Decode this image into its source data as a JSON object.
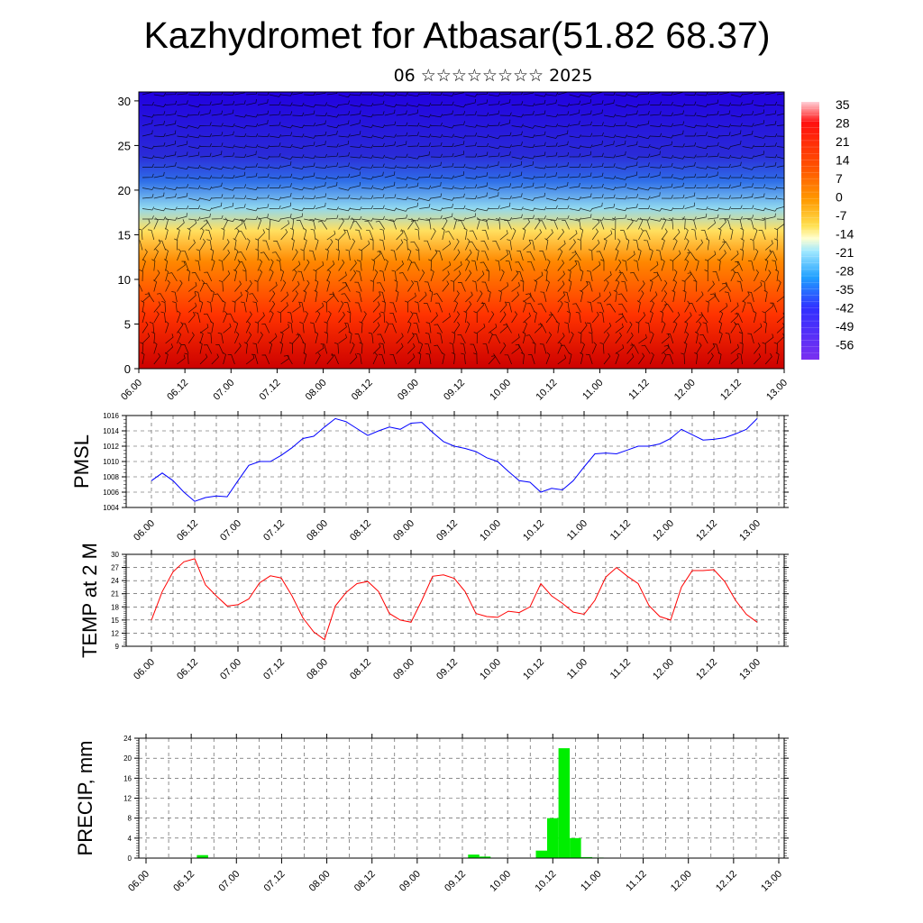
{
  "header": {
    "title": "Kazhydromet for Atbasar(51.82 68.37)",
    "subtitle": "06 ☆☆☆☆☆☆☆☆ 2025"
  },
  "colors": {
    "pmsl_line": "#0000ff",
    "temp_line": "#ff0000",
    "precip_bar": "#00ee00",
    "wind_barb": "#000000"
  },
  "chart_data": [
    {
      "type": "heatmap",
      "title": "",
      "xlabel": "",
      "ylabel": "",
      "x_ticks": [
        "06.00",
        "06.12",
        "07.00",
        "07.12",
        "08.00",
        "08.12",
        "09.00",
        "09.12",
        "10.00",
        "10.12",
        "11.00",
        "11.12",
        "12.00",
        "12.12",
        "13.00"
      ],
      "ylim": [
        0,
        31
      ],
      "y_ticks": [
        0,
        5,
        10,
        15,
        20,
        25,
        30
      ],
      "colorbar_ticks": [
        "35",
        "28",
        "21",
        "14",
        "7",
        "0",
        "-7",
        "-14",
        "-21",
        "-28",
        "-35",
        "-42",
        "-49",
        "-56"
      ],
      "color_stops": [
        {
          "level": 0,
          "color": "#cc0000"
        },
        {
          "level": 6,
          "color": "#ff3300"
        },
        {
          "level": 12,
          "color": "#ff8800"
        },
        {
          "level": 15.5,
          "color": "#ffe060"
        },
        {
          "level": 18,
          "color": "#90d8f0"
        },
        {
          "level": 21,
          "color": "#2f6fe8"
        },
        {
          "level": 24,
          "color": "#2a2ad8"
        },
        {
          "level": 31,
          "color": "#2200e0"
        }
      ],
      "overlay": "wind barbs"
    },
    {
      "type": "line",
      "ylabel": "PMSL",
      "x_ticks": [
        "06.00",
        "06.12",
        "07.00",
        "07.12",
        "08.00",
        "08.12",
        "09.00",
        "09.12",
        "10.00",
        "10.12",
        "11.00",
        "11.12",
        "12.00",
        "12.12",
        "13.00"
      ],
      "ylim": [
        1004,
        1016
      ],
      "y_ticks": [
        1004,
        1006,
        1008,
        1010,
        1012,
        1014,
        1016
      ],
      "grid": true,
      "series": [
        {
          "x_step_hours": 3,
          "values": [
            1007.5,
            1008.5,
            1007.5,
            1006.0,
            1004.8,
            1005.3,
            1005.5,
            1005.4,
            1007.5,
            1009.5,
            1010.0,
            1010.0,
            1010.8,
            1011.8,
            1013.0,
            1013.3,
            1014.5,
            1015.6,
            1015.2,
            1014.3,
            1013.4,
            1014.0,
            1014.5,
            1014.2,
            1015.0,
            1015.1,
            1013.8,
            1012.6,
            1012.0,
            1011.7,
            1011.3,
            1010.5,
            1010.0,
            1008.7,
            1007.5,
            1007.3,
            1006.0,
            1006.5,
            1006.3,
            1007.5,
            1009.3,
            1011.0,
            1011.1,
            1011.0,
            1011.5,
            1012.0,
            1012.0,
            1012.3,
            1013.0,
            1014.2,
            1013.5,
            1012.8,
            1012.9,
            1013.1,
            1013.6,
            1014.2,
            1015.6
          ]
        }
      ]
    },
    {
      "type": "line",
      "ylabel": "TEMP at 2 M",
      "x_ticks": [
        "06.00",
        "06.12",
        "07.00",
        "07.12",
        "08.00",
        "08.12",
        "09.00",
        "09.12",
        "10.00",
        "10.12",
        "11.00",
        "11.12",
        "12.00",
        "12.12",
        "13.00"
      ],
      "ylim": [
        9,
        30
      ],
      "y_ticks": [
        9,
        12,
        15,
        18,
        21,
        24,
        27,
        30
      ],
      "grid": true,
      "series": [
        {
          "x_step_hours": 3,
          "values": [
            15,
            21.5,
            26,
            28.3,
            29,
            23,
            20.5,
            18.2,
            18.5,
            19.8,
            23.5,
            25.1,
            24.6,
            20.5,
            15.5,
            12.3,
            10.5,
            18.2,
            21.3,
            23.3,
            23.8,
            21.5,
            16.5,
            15,
            14.5,
            19.5,
            25,
            25.3,
            24.5,
            21.5,
            16.5,
            15.8,
            15.6,
            17,
            16.7,
            18,
            23.3,
            20.5,
            18.8,
            16.8,
            16.3,
            19.5,
            24.8,
            27,
            25,
            23.3,
            18.3,
            15.8,
            15,
            22.5,
            26.3,
            26.3,
            26.5,
            23.8,
            19.5,
            16.3,
            14.5
          ]
        }
      ]
    },
    {
      "type": "bar",
      "ylabel": "PRECIP, mm",
      "x_ticks": [
        "06.00",
        "06.12",
        "07.00",
        "07.12",
        "08.00",
        "08.12",
        "09.00",
        "09.12",
        "10.00",
        "10.12",
        "11.00",
        "11.12",
        "12.00",
        "12.12",
        "13.00"
      ],
      "ylim": [
        0,
        24
      ],
      "y_ticks": [
        0,
        4,
        8,
        12,
        16,
        20,
        24
      ],
      "grid": true,
      "series": [
        {
          "x_step_hours": 3,
          "values": [
            0,
            0,
            0,
            0,
            0,
            0.6,
            0,
            0,
            0,
            0,
            0,
            0,
            0,
            0,
            0,
            0,
            0,
            0,
            0,
            0,
            0,
            0,
            0,
            0,
            0,
            0,
            0,
            0,
            0,
            0.7,
            0.3,
            0,
            0,
            0,
            0,
            1.5,
            8,
            22,
            4,
            0.2,
            0.1,
            0,
            0,
            0,
            0,
            0,
            0,
            0,
            0,
            0,
            0,
            0,
            0,
            0,
            0,
            0
          ]
        }
      ]
    }
  ]
}
